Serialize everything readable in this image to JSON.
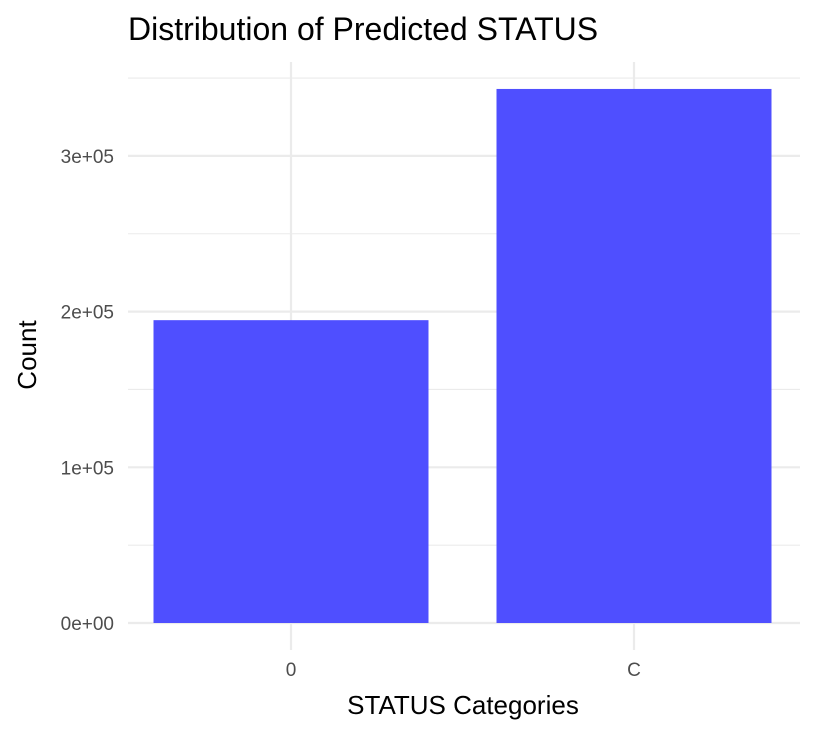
{
  "chart_data": {
    "type": "bar",
    "title": "Distribution of Predicted STATUS",
    "xlabel": "STATUS Categories",
    "ylabel": "Count",
    "categories": [
      "0",
      "C"
    ],
    "values": [
      194500,
      343000
    ],
    "ylim": [
      0,
      350000
    ],
    "y_ticks": [
      0,
      100000,
      200000,
      300000
    ],
    "y_tick_labels": [
      "0e+00",
      "1e+05",
      "2e+05",
      "3e+05"
    ],
    "bar_color": "#4b4bff",
    "grid": true,
    "legend": "none"
  }
}
